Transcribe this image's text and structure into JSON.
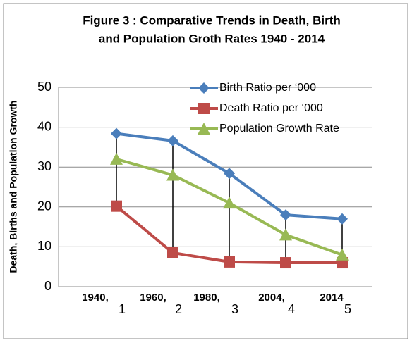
{
  "chart_data": {
    "type": "line",
    "title": [
      "Figure 3 : Comparative Trends in Death, Birth",
      "and Population Groth Rates 1940 - 2014"
    ],
    "y_label": "Death, Births and Population Growth",
    "categories": [
      "1",
      "2",
      "3",
      "4",
      "5"
    ],
    "category_labels": [
      "1940,",
      "1960,",
      "1980,",
      "2004,",
      "2014"
    ],
    "series": [
      {
        "name": "Birth Ratio per ‘000",
        "color": "#4a7ebb",
        "marker": "diamond",
        "values": [
          38.4,
          36.6,
          28.4,
          18,
          17
        ]
      },
      {
        "name": "Death Ratio per ‘000",
        "color": "#be4b48",
        "marker": "square",
        "values": [
          20.2,
          8.5,
          6.2,
          6,
          6
        ]
      },
      {
        "name": "Population Growth Rate",
        "color": "#98b954",
        "marker": "triangle",
        "values": [
          32,
          28,
          21,
          13,
          8
        ]
      }
    ],
    "ylim": [
      0,
      50
    ],
    "yticks": [
      0,
      10,
      20,
      30,
      40,
      50
    ],
    "grid": true,
    "high_low_lines": true
  }
}
